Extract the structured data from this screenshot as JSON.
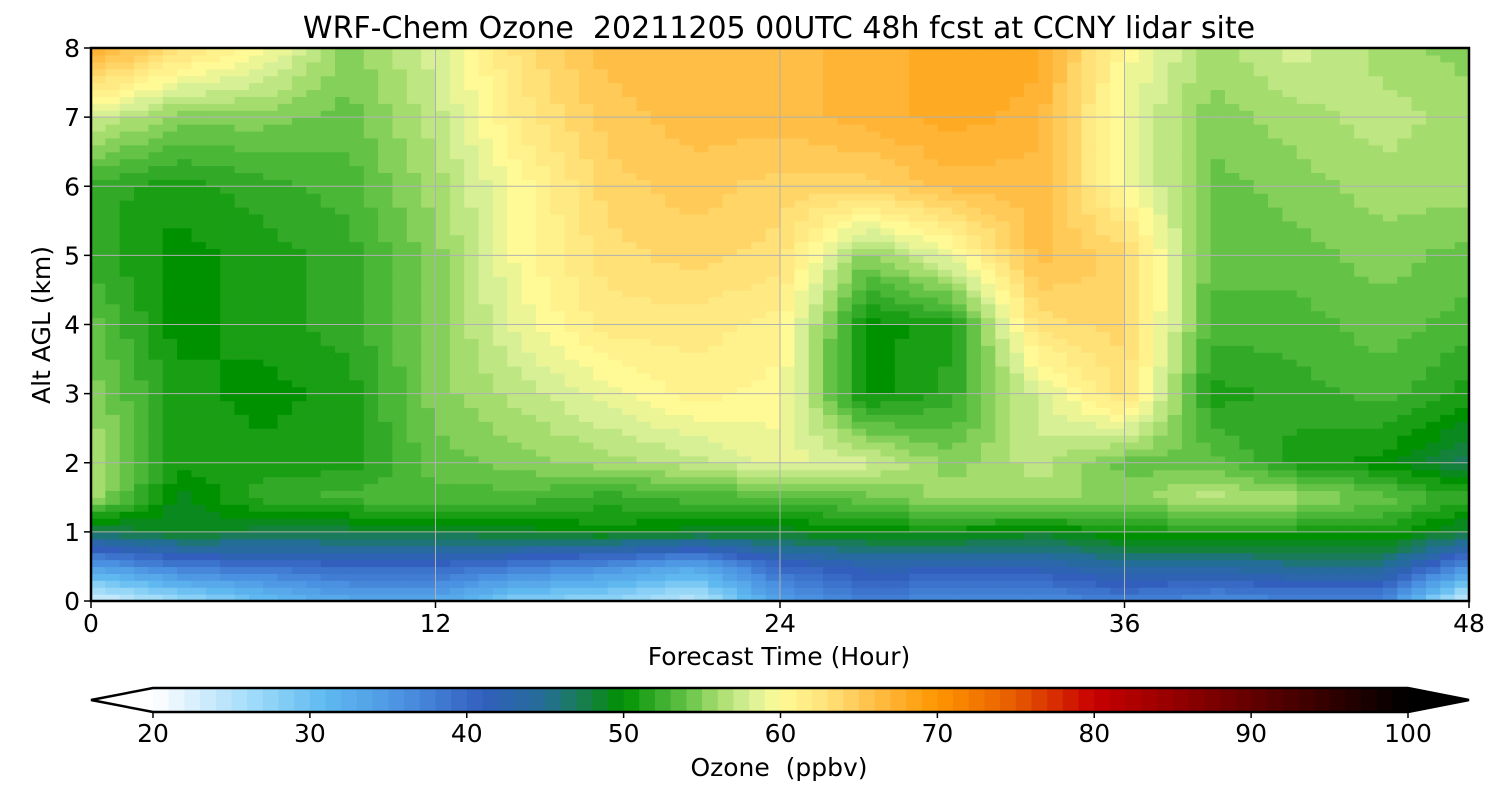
{
  "chart_data": {
    "type": "heatmap",
    "title": "WRF-Chem Ozone  20211205 00UTC 48h fcst at CCNY lidar site",
    "xlabel": "Forecast Time (Hour)",
    "ylabel": "Alt AGL (km)",
    "xlim": [
      0,
      48
    ],
    "ylim": [
      0,
      8
    ],
    "xticks": [
      0,
      12,
      24,
      36,
      48
    ],
    "yticks": [
      0,
      1,
      2,
      3,
      4,
      5,
      6,
      7,
      8
    ],
    "grid": true,
    "colorbar": {
      "label": "Ozone  (ppbv)",
      "min": 20,
      "max": 100,
      "ticks": [
        20,
        30,
        40,
        50,
        60,
        70,
        80,
        90,
        100
      ],
      "extend": "both",
      "orientation": "horizontal",
      "placement": "bottom"
    },
    "x": [
      0,
      3,
      6,
      9,
      12,
      15,
      18,
      21,
      24,
      27,
      30,
      33,
      36,
      39,
      42,
      45,
      48
    ],
    "y": [
      0,
      0.5,
      1,
      1.5,
      2,
      3,
      4,
      5,
      6,
      7,
      8
    ],
    "z": [
      [
        22,
        26,
        30,
        33,
        33,
        28,
        27,
        24,
        34,
        38,
        36,
        36,
        38,
        36,
        37,
        37,
        22
      ],
      [
        34,
        38,
        39,
        40,
        40,
        38,
        36,
        33,
        40,
        42,
        42,
        42,
        44,
        44,
        45,
        45,
        36
      ],
      [
        47,
        49,
        48,
        48,
        48,
        49,
        50,
        49,
        49,
        50,
        50,
        49,
        51,
        51,
        51,
        51,
        48
      ],
      [
        56,
        49,
        52,
        53,
        53,
        53,
        52,
        53,
        53,
        54,
        56,
        56,
        55,
        57,
        56,
        54,
        52
      ],
      [
        57,
        51,
        51,
        51,
        54,
        55,
        56,
        57,
        59,
        58,
        55,
        57,
        54,
        54,
        51,
        50,
        47
      ],
      [
        55,
        51,
        50,
        51,
        55,
        57,
        59,
        61,
        60,
        50,
        52,
        58,
        63,
        51,
        52,
        53,
        51
      ],
      [
        54,
        50,
        51,
        52,
        55,
        59,
        62,
        62,
        61,
        50,
        51,
        63,
        64,
        53,
        53,
        54,
        53
      ],
      [
        52,
        50,
        51,
        52,
        55,
        60,
        63,
        64,
        63,
        55,
        59,
        66,
        64,
        54,
        54,
        55,
        54
      ],
      [
        52,
        51,
        52,
        53,
        56,
        60,
        64,
        65,
        64,
        64,
        66,
        66,
        60,
        54,
        55,
        56,
        56
      ],
      [
        58,
        55,
        55,
        54,
        57,
        62,
        65,
        66,
        66,
        67,
        68,
        67,
        59,
        55,
        56,
        57,
        56
      ],
      [
        68,
        63,
        60,
        55,
        58,
        63,
        66,
        66,
        66,
        67,
        68,
        68,
        60,
        56,
        58,
        56,
        55
      ]
    ]
  }
}
